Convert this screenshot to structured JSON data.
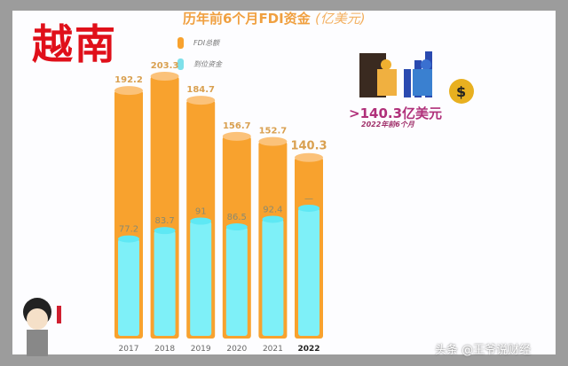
{
  "header": {
    "country": "越南",
    "title": "历年前6个月FDI资金",
    "unit": "(亿美元)"
  },
  "highlight": {
    "value": ">140.3亿美元",
    "caption": "2022年前6个月"
  },
  "watermark": "头条 @王爷说财经",
  "chart_data": {
    "type": "bar",
    "title": "历年前6个月FDI资金 (亿美元)",
    "categories": [
      "2017",
      "2018",
      "2019",
      "2020",
      "2021",
      "2022"
    ],
    "series": [
      {
        "name": "FDI总额",
        "color": "#f8a22e",
        "values": [
          192.2,
          203.3,
          184.7,
          156.7,
          152.7,
          140.3
        ],
        "labels": [
          "192.2",
          "203.3",
          "184.7",
          "156.7",
          "152.7",
          "140.3"
        ]
      },
      {
        "name": "到位资金",
        "color": "#7ef0f8",
        "values": [
          77.2,
          83.7,
          91,
          86.5,
          92.4,
          null
        ],
        "labels": [
          "77.2",
          "83.7",
          "91",
          "86.5",
          "92.4",
          "—"
        ]
      }
    ],
    "legend": "top-left",
    "grid": false,
    "ylim": [
      0,
      210
    ]
  }
}
